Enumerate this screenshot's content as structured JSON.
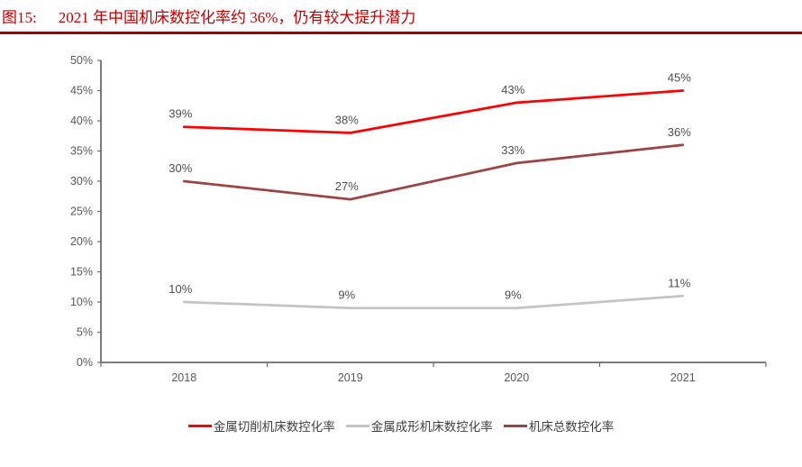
{
  "figure": {
    "label": "图15:",
    "title": "2021 年中国机床数控化率约 36%，仍有较大提升潜力"
  },
  "chart_data": {
    "type": "line",
    "title": "2021 年中国机床数控化率约 36%，仍有较大提升潜力",
    "categories": [
      "2018",
      "2019",
      "2020",
      "2021"
    ],
    "series": [
      {
        "name": "金属切削机床数控化率",
        "color": "#FF0000",
        "values": [
          39,
          38,
          43,
          45
        ]
      },
      {
        "name": "金属成形机床数控化率",
        "color": "#C4C4C4",
        "values": [
          10,
          9,
          9,
          11
        ]
      },
      {
        "name": "机床总数控化率",
        "color": "#9E4343",
        "values": [
          30,
          27,
          33,
          36
        ]
      }
    ],
    "xlabel": "",
    "ylabel": "",
    "ylim": [
      0,
      50
    ],
    "y_tick_step": 5,
    "y_tick_labels": [
      "0%",
      "5%",
      "10%",
      "15%",
      "20%",
      "25%",
      "30%",
      "35%",
      "40%",
      "45%",
      "50%"
    ],
    "data_label_suffix": "%",
    "grid": false,
    "legend_position": "bottom",
    "markers": false
  },
  "style": {
    "title_color": "#C00000",
    "divider_color": "#9C0000",
    "axis_color": "#6B6B6B",
    "tick_label_color": "#595959",
    "data_label_color": "#4D4D4D",
    "legend_text_color": "#3F3F3F",
    "background": "#FFFFFF"
  }
}
